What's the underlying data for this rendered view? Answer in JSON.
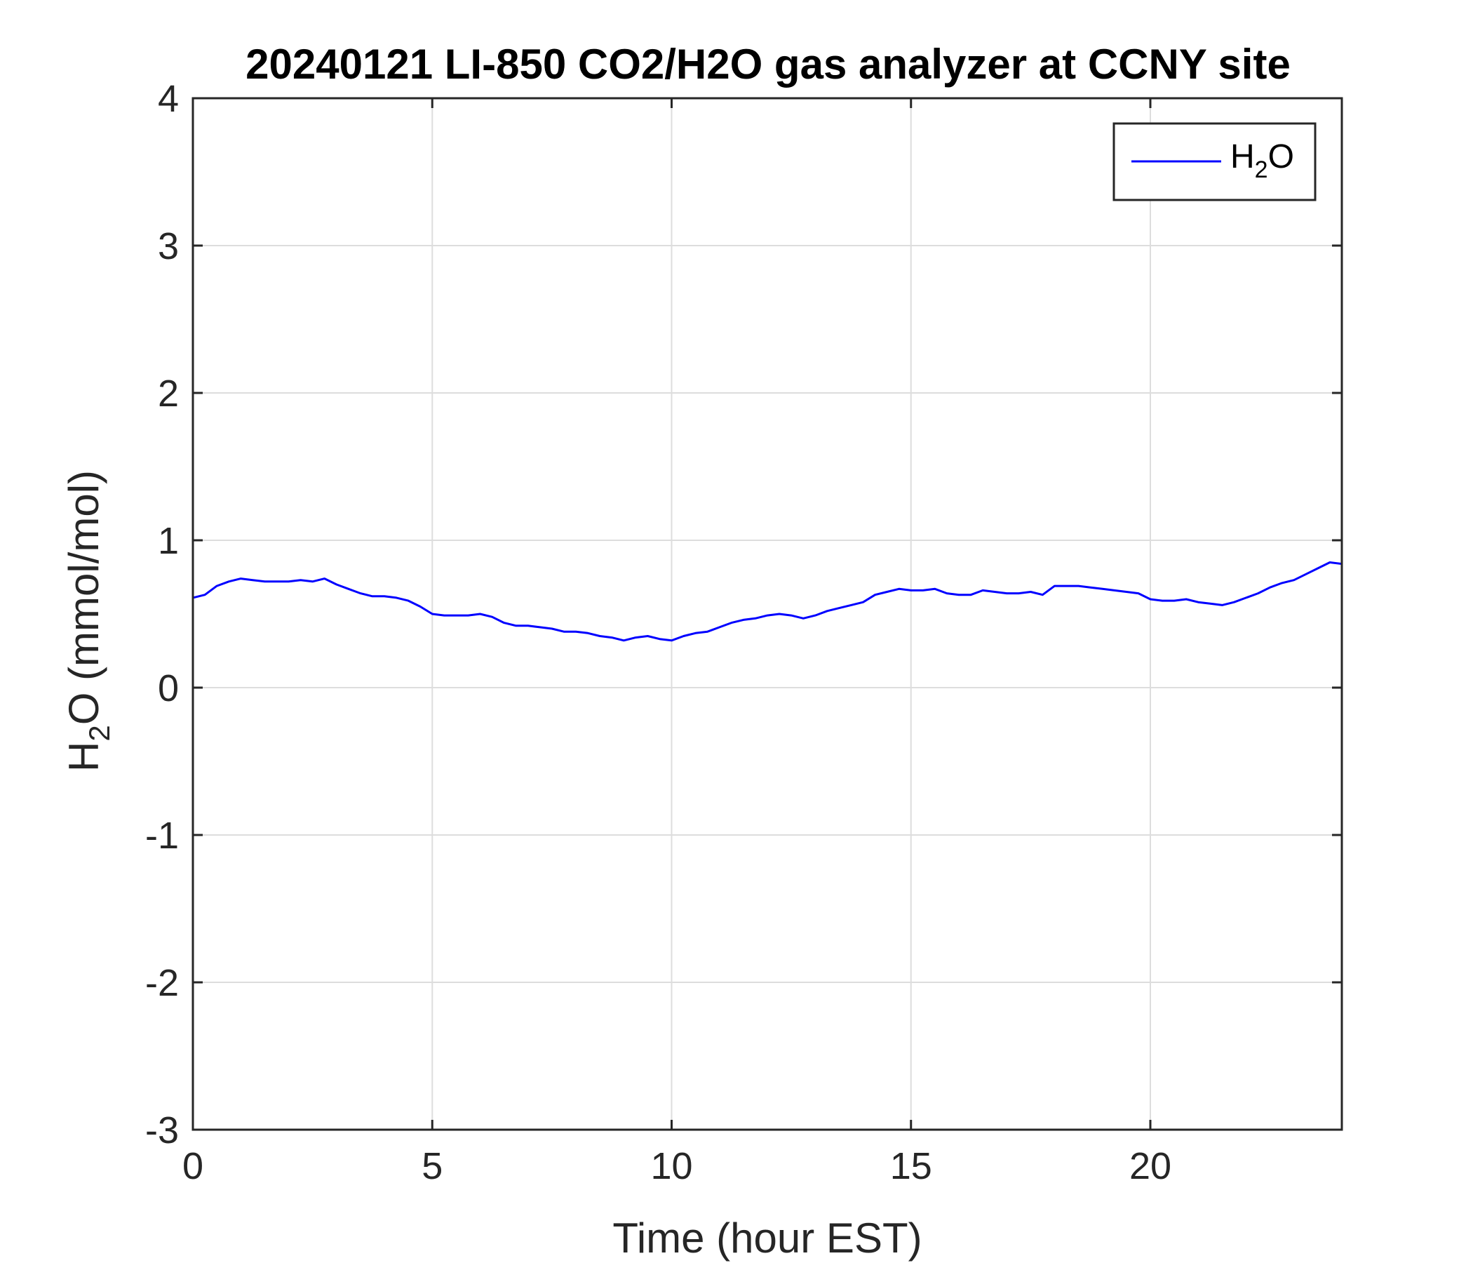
{
  "chart_data": {
    "type": "line",
    "title": "20240121 LI-850 CO2/H2O gas analyzer at CCNY site",
    "xlabel": "Time (hour EST)",
    "ylabel": {
      "main": "H",
      "sub": "2",
      "rest": "O (mmol/mol)"
    },
    "xlim": [
      0,
      24
    ],
    "ylim": [
      -3,
      4
    ],
    "xticks": [
      0,
      5,
      10,
      15,
      20
    ],
    "yticks": [
      -3,
      -2,
      -1,
      0,
      1,
      2,
      3,
      4
    ],
    "grid": true,
    "legend_position": "top-right",
    "series": [
      {
        "name": {
          "main": "H",
          "sub": "2",
          "rest": "O"
        },
        "color": "#0000ff",
        "x": [
          0,
          0.25,
          0.5,
          0.75,
          1.0,
          1.25,
          1.5,
          1.75,
          2.0,
          2.25,
          2.5,
          2.75,
          3.0,
          3.25,
          3.5,
          3.75,
          4.0,
          4.25,
          4.5,
          4.75,
          5.0,
          5.25,
          5.5,
          5.75,
          6.0,
          6.25,
          6.5,
          6.75,
          7.0,
          7.25,
          7.5,
          7.75,
          8.0,
          8.25,
          8.5,
          8.75,
          9.0,
          9.25,
          9.5,
          9.75,
          10.0,
          10.25,
          10.5,
          10.75,
          11.0,
          11.25,
          11.5,
          11.75,
          12.0,
          12.25,
          12.5,
          12.75,
          13.0,
          13.25,
          13.5,
          13.75,
          14.0,
          14.25,
          14.5,
          14.75,
          15.0,
          15.25,
          15.5,
          15.75,
          16.0,
          16.25,
          16.5,
          16.75,
          17.0,
          17.25,
          17.5,
          17.75,
          18.0,
          18.25,
          18.5,
          18.75,
          19.0,
          19.25,
          19.5,
          19.75,
          20.0,
          20.25,
          20.5,
          20.75,
          21.0,
          21.25,
          21.5,
          21.75,
          22.0,
          22.25,
          22.5,
          22.75,
          23.0,
          23.25,
          23.5,
          23.75,
          24.0
        ],
        "values": [
          0.61,
          0.63,
          0.69,
          0.72,
          0.74,
          0.73,
          0.72,
          0.72,
          0.72,
          0.73,
          0.72,
          0.74,
          0.7,
          0.67,
          0.64,
          0.62,
          0.62,
          0.61,
          0.59,
          0.55,
          0.5,
          0.49,
          0.49,
          0.49,
          0.5,
          0.48,
          0.44,
          0.42,
          0.42,
          0.41,
          0.4,
          0.38,
          0.38,
          0.37,
          0.35,
          0.34,
          0.32,
          0.34,
          0.35,
          0.33,
          0.32,
          0.35,
          0.37,
          0.38,
          0.41,
          0.44,
          0.46,
          0.47,
          0.49,
          0.5,
          0.49,
          0.47,
          0.49,
          0.52,
          0.54,
          0.56,
          0.58,
          0.63,
          0.65,
          0.67,
          0.66,
          0.66,
          0.67,
          0.64,
          0.63,
          0.63,
          0.66,
          0.65,
          0.64,
          0.64,
          0.65,
          0.63,
          0.69,
          0.69,
          0.69,
          0.68,
          0.67,
          0.66,
          0.65,
          0.64,
          0.6,
          0.59,
          0.59,
          0.6,
          0.58,
          0.57,
          0.56,
          0.58,
          0.61,
          0.64,
          0.68,
          0.71,
          0.73,
          0.77,
          0.81,
          0.85,
          0.84
        ]
      }
    ]
  }
}
